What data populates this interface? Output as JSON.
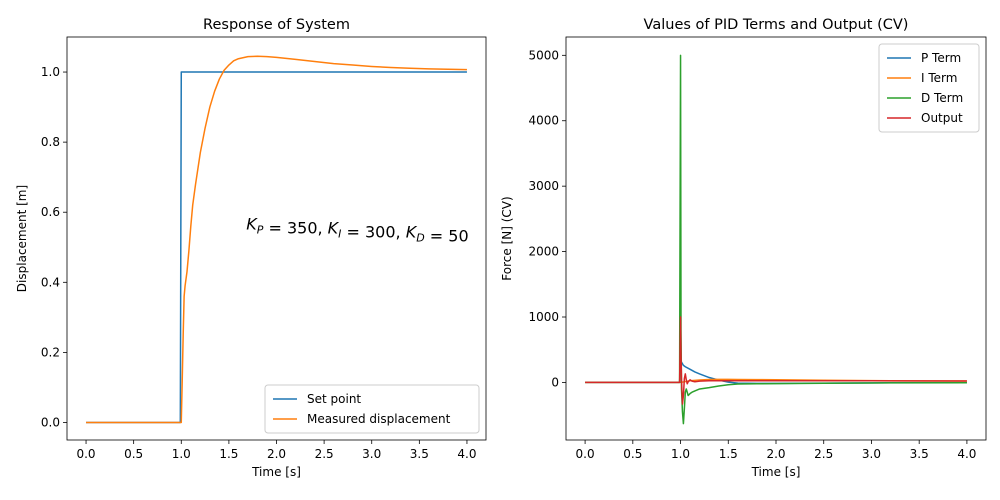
{
  "chart_data": [
    {
      "type": "line",
      "title": "Response of System",
      "xlabel": "Time [s]",
      "ylabel": "Displacement [m]",
      "xlim": [
        -0.2,
        4.2
      ],
      "ylim": [
        -0.05,
        1.1
      ],
      "xticks": [
        0.0,
        0.5,
        1.0,
        1.5,
        2.0,
        2.5,
        3.0,
        3.5,
        4.0
      ],
      "xtick_labels": [
        "0.0",
        "0.5",
        "1.0",
        "1.5",
        "2.0",
        "2.5",
        "3.0",
        "3.5",
        "4.0"
      ],
      "yticks": [
        0.0,
        0.2,
        0.4,
        0.6,
        0.8,
        1.0
      ],
      "ytick_labels": [
        "0.0",
        "0.2",
        "0.4",
        "0.6",
        "0.8",
        "1.0"
      ],
      "legend_position": "lower-right",
      "annotation": {
        "x": 2.85,
        "y": 0.55,
        "prefix_parts": [
          {
            "t": "K",
            "sub": "P"
          },
          {
            "t": " = 350, "
          },
          {
            "t": "K",
            "sub": "I"
          },
          {
            "t": " = 300, "
          },
          {
            "t": "K",
            "sub": "D"
          },
          {
            "t": " = 50"
          }
        ]
      },
      "series": [
        {
          "name": "Set point",
          "color": "#1f77b4",
          "x": [
            0.0,
            0.99,
            1.0,
            4.0
          ],
          "y": [
            0.0,
            0.0,
            1.0,
            1.0
          ]
        },
        {
          "name": "Measured displacement",
          "color": "#ff7f0e",
          "x": [
            0.0,
            0.99,
            1.0,
            1.01,
            1.02,
            1.03,
            1.04,
            1.05,
            1.06,
            1.08,
            1.1,
            1.12,
            1.15,
            1.2,
            1.25,
            1.3,
            1.35,
            1.4,
            1.45,
            1.5,
            1.55,
            1.6,
            1.7,
            1.8,
            1.9,
            2.0,
            2.2,
            2.4,
            2.6,
            2.8,
            3.0,
            3.2,
            3.4,
            3.6,
            3.8,
            4.0
          ],
          "y": [
            0.0,
            0.0,
            0.0,
            0.12,
            0.25,
            0.36,
            0.39,
            0.41,
            0.43,
            0.49,
            0.56,
            0.62,
            0.68,
            0.77,
            0.84,
            0.9,
            0.945,
            0.98,
            1.005,
            1.02,
            1.032,
            1.038,
            1.044,
            1.045,
            1.044,
            1.042,
            1.036,
            1.03,
            1.024,
            1.02,
            1.016,
            1.013,
            1.011,
            1.009,
            1.008,
            1.007
          ]
        }
      ]
    },
    {
      "type": "line",
      "title": "Values of PID Terms and Output (CV)",
      "xlabel": "Time [s]",
      "ylabel": "Force [N] (CV)",
      "xlim": [
        -0.2,
        4.2
      ],
      "ylim": [
        -880,
        5280
      ],
      "xticks": [
        0.0,
        0.5,
        1.0,
        1.5,
        2.0,
        2.5,
        3.0,
        3.5,
        4.0
      ],
      "xtick_labels": [
        "0.0",
        "0.5",
        "1.0",
        "1.5",
        "2.0",
        "2.5",
        "3.0",
        "3.5",
        "4.0"
      ],
      "yticks": [
        0,
        1000,
        2000,
        3000,
        4000,
        5000
      ],
      "ytick_labels": [
        "0",
        "1000",
        "2000",
        "3000",
        "4000",
        "5000"
      ],
      "legend_position": "upper-right",
      "series": [
        {
          "name": "P Term",
          "color": "#1f77b4",
          "x": [
            0.0,
            0.99,
            1.0,
            1.01,
            1.03,
            1.05,
            1.1,
            1.15,
            1.2,
            1.3,
            1.4,
            1.5,
            1.6,
            1.8,
            2.0,
            2.5,
            3.0,
            4.0
          ],
          "y": [
            0,
            0,
            350,
            310,
            260,
            240,
            200,
            160,
            130,
            75,
            35,
            5,
            -10,
            -15,
            -14,
            -10,
            -6,
            -3
          ]
        },
        {
          "name": "I Term",
          "color": "#ff7f0e",
          "x": [
            0.0,
            0.99,
            1.0,
            1.1,
            1.2,
            1.3,
            1.4,
            1.5,
            1.6,
            1.8,
            2.0,
            2.5,
            3.0,
            3.5,
            4.0
          ],
          "y": [
            0,
            0,
            0,
            25,
            38,
            44,
            46,
            46,
            45,
            43,
            40,
            34,
            28,
            24,
            21
          ]
        },
        {
          "name": "D Term",
          "color": "#2ca02c",
          "x": [
            0.0,
            0.99,
            1.0,
            1.005,
            1.01,
            1.02,
            1.03,
            1.04,
            1.05,
            1.06,
            1.08,
            1.1,
            1.12,
            1.15,
            1.2,
            1.3,
            1.4,
            1.5,
            1.6,
            1.8,
            2.0,
            2.5,
            3.0,
            4.0
          ],
          "y": [
            0,
            0,
            5000,
            800,
            -100,
            -450,
            -630,
            -400,
            -150,
            -100,
            -200,
            -170,
            -150,
            -130,
            -100,
            -80,
            -55,
            -35,
            -25,
            -20,
            -18,
            -12,
            -8,
            -4
          ]
        },
        {
          "name": "Output",
          "color": "#d62728",
          "x": [
            0.0,
            0.99,
            1.0,
            1.005,
            1.01,
            1.02,
            1.03,
            1.04,
            1.05,
            1.06,
            1.07,
            1.08,
            1.1,
            1.12,
            1.15,
            1.2,
            1.3,
            1.5,
            2.0,
            3.0,
            4.0
          ],
          "y": [
            0,
            0,
            1000,
            400,
            50,
            -330,
            -200,
            60,
            130,
            40,
            -20,
            10,
            40,
            20,
            10,
            20,
            25,
            25,
            25,
            25,
            22
          ]
        }
      ]
    }
  ]
}
